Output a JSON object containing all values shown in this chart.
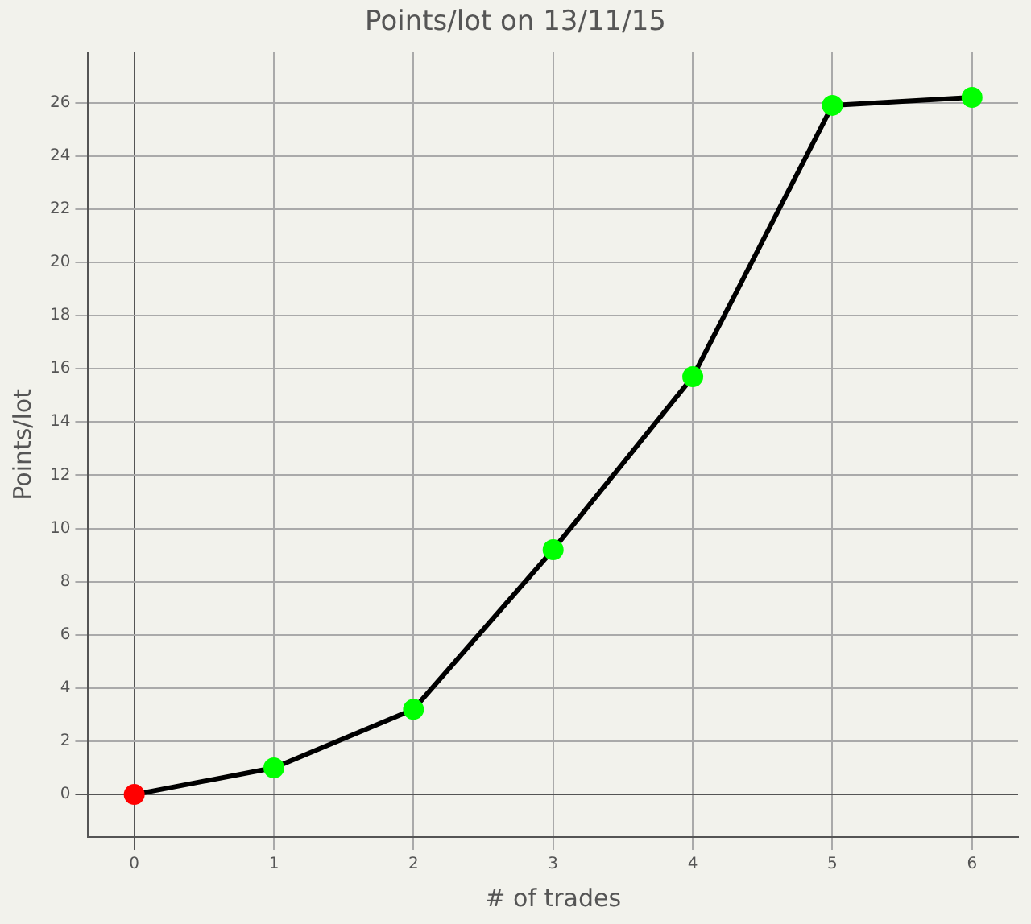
{
  "chart_data": {
    "type": "line",
    "title": "Points/lot on 13/11/15",
    "xlabel": "# of trades",
    "ylabel": "Points/lot",
    "x": [
      0,
      1,
      2,
      3,
      4,
      5,
      6
    ],
    "series": [
      {
        "color": "#000000",
        "colors": [
          "#ff0000",
          "#00ff00",
          "#00ff00",
          "#00ff00",
          "#00ff00",
          "#00ff00",
          "#00ff00"
        ],
        "values": [
          0,
          1.0,
          3.2,
          9.2,
          15.7,
          25.9,
          26.2
        ]
      }
    ],
    "xlim": [
      -0.33,
      6.33
    ],
    "xticks": [
      0,
      1,
      2,
      3,
      4,
      5,
      6
    ],
    "ylim": [
      -1.6,
      27.9
    ],
    "yticks": [
      0,
      2,
      4,
      6,
      8,
      10,
      12,
      14,
      16,
      18,
      20,
      22,
      24,
      26
    ],
    "grid": true,
    "legend": false,
    "marker": "circle",
    "line_style": "solid"
  }
}
